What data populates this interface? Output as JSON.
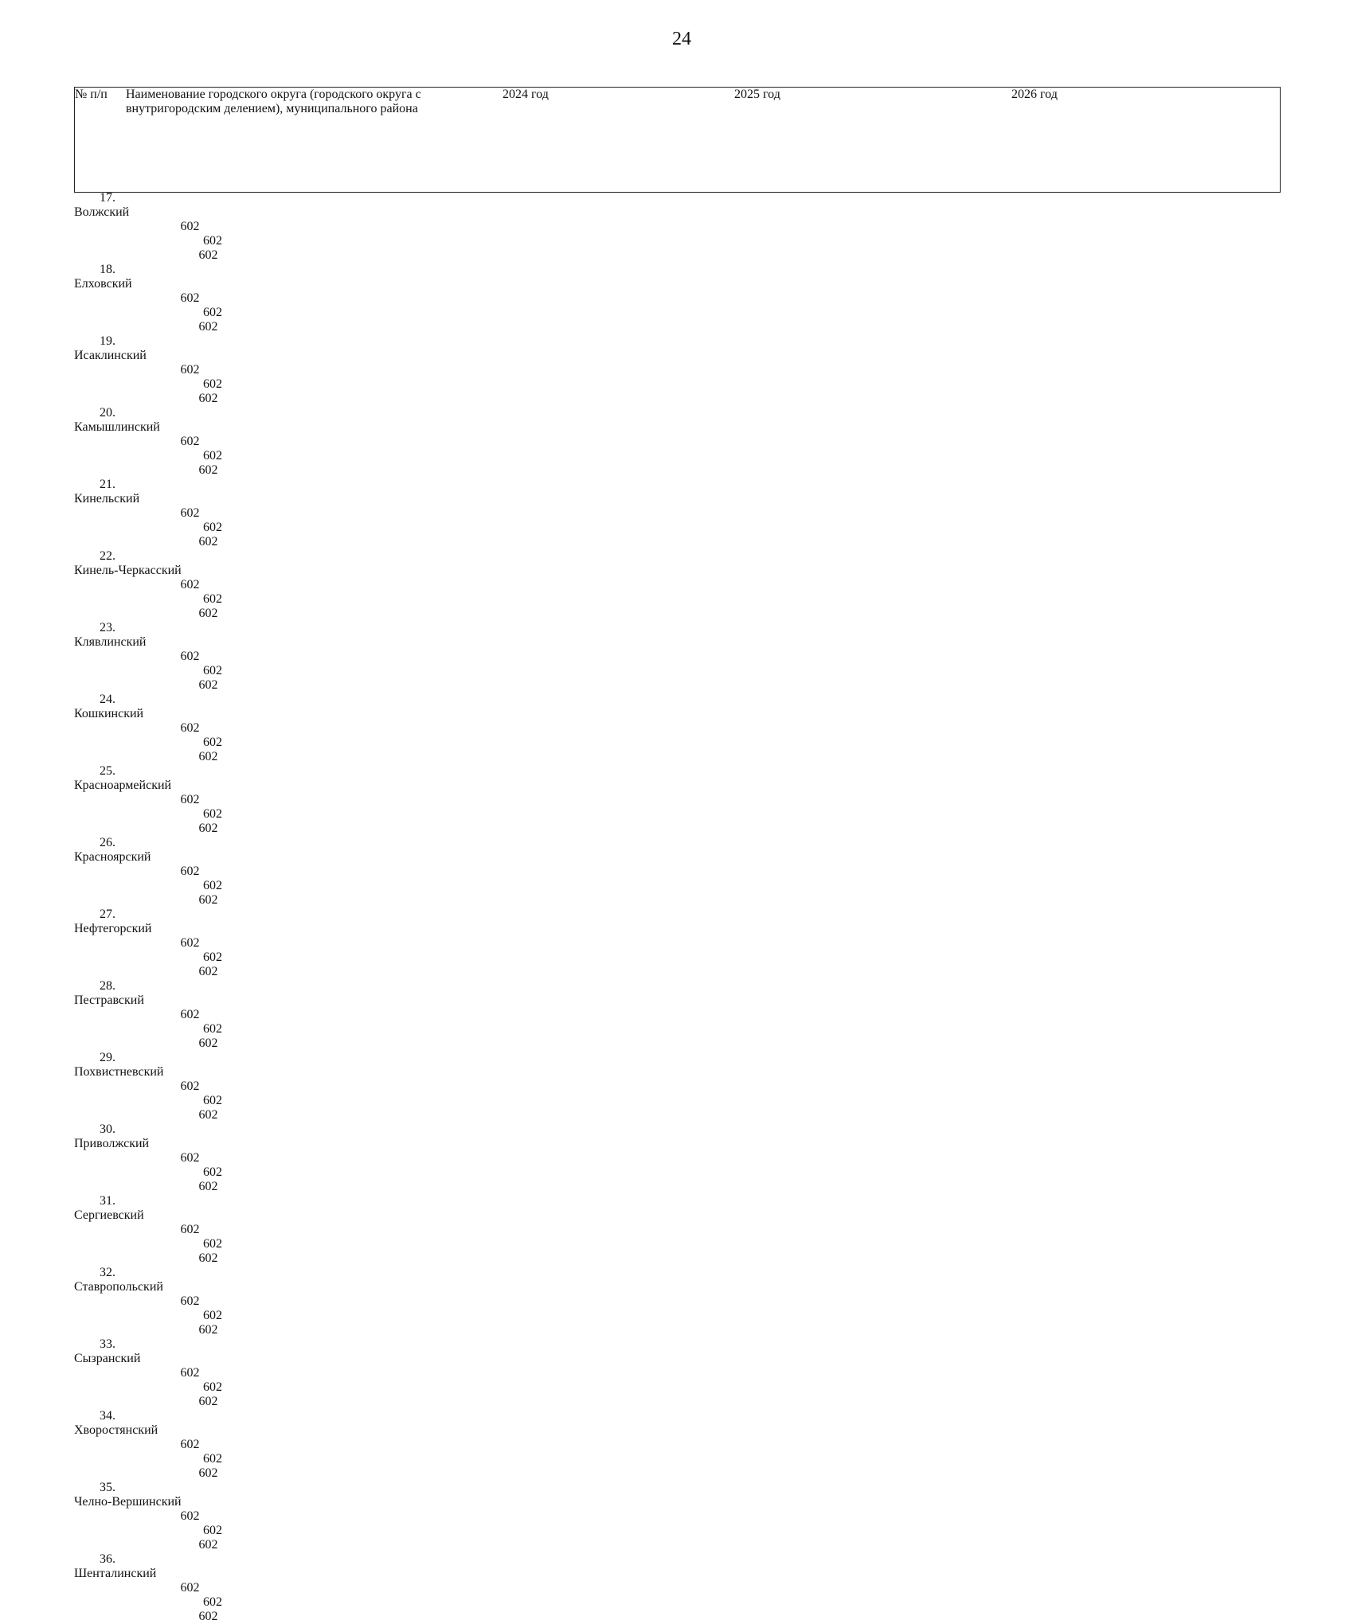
{
  "page_number": "24",
  "table": {
    "header": [
      "№ п/п",
      "Наименование городского округа (городского округа с внутригородским делением), муниципального района",
      "2024 год",
      "2025 год",
      "2026 год"
    ],
    "rows": [
      [
        "17.",
        "Волжский",
        602,
        602,
        602
      ],
      [
        "18.",
        "Елховский",
        602,
        602,
        602
      ],
      [
        "19.",
        "Исаклинский",
        602,
        602,
        602
      ],
      [
        "20.",
        "Камышлинский",
        602,
        602,
        602
      ],
      [
        "21.",
        "Кинельский",
        602,
        602,
        602
      ],
      [
        "22.",
        "Кинель-Черкасский",
        602,
        602,
        602
      ],
      [
        "23.",
        "Клявлинский",
        602,
        602,
        602
      ],
      [
        "24.",
        "Кошкинский",
        602,
        602,
        602
      ],
      [
        "25.",
        "Красноармейский",
        602,
        602,
        602
      ],
      [
        "26.",
        "Красноярский",
        602,
        602,
        602
      ],
      [
        "27.",
        "Нефтегорский",
        602,
        602,
        602
      ],
      [
        "28.",
        "Пестравский",
        602,
        602,
        602
      ],
      [
        "29.",
        "Похвистневский",
        602,
        602,
        602
      ],
      [
        "30.",
        "Приволжский",
        602,
        602,
        602
      ],
      [
        "31.",
        "Сергиевский",
        602,
        602,
        602
      ],
      [
        "32.",
        "Ставропольский",
        602,
        602,
        602
      ],
      [
        "33.",
        "Сызранский",
        602,
        602,
        602
      ],
      [
        "34.",
        "Хворостянский",
        602,
        602,
        602
      ],
      [
        "35.",
        "Челно-Вершинский",
        602,
        602,
        602
      ],
      [
        "36.",
        "Шенталинский",
        602,
        602,
        602
      ]
    ]
  }
}
